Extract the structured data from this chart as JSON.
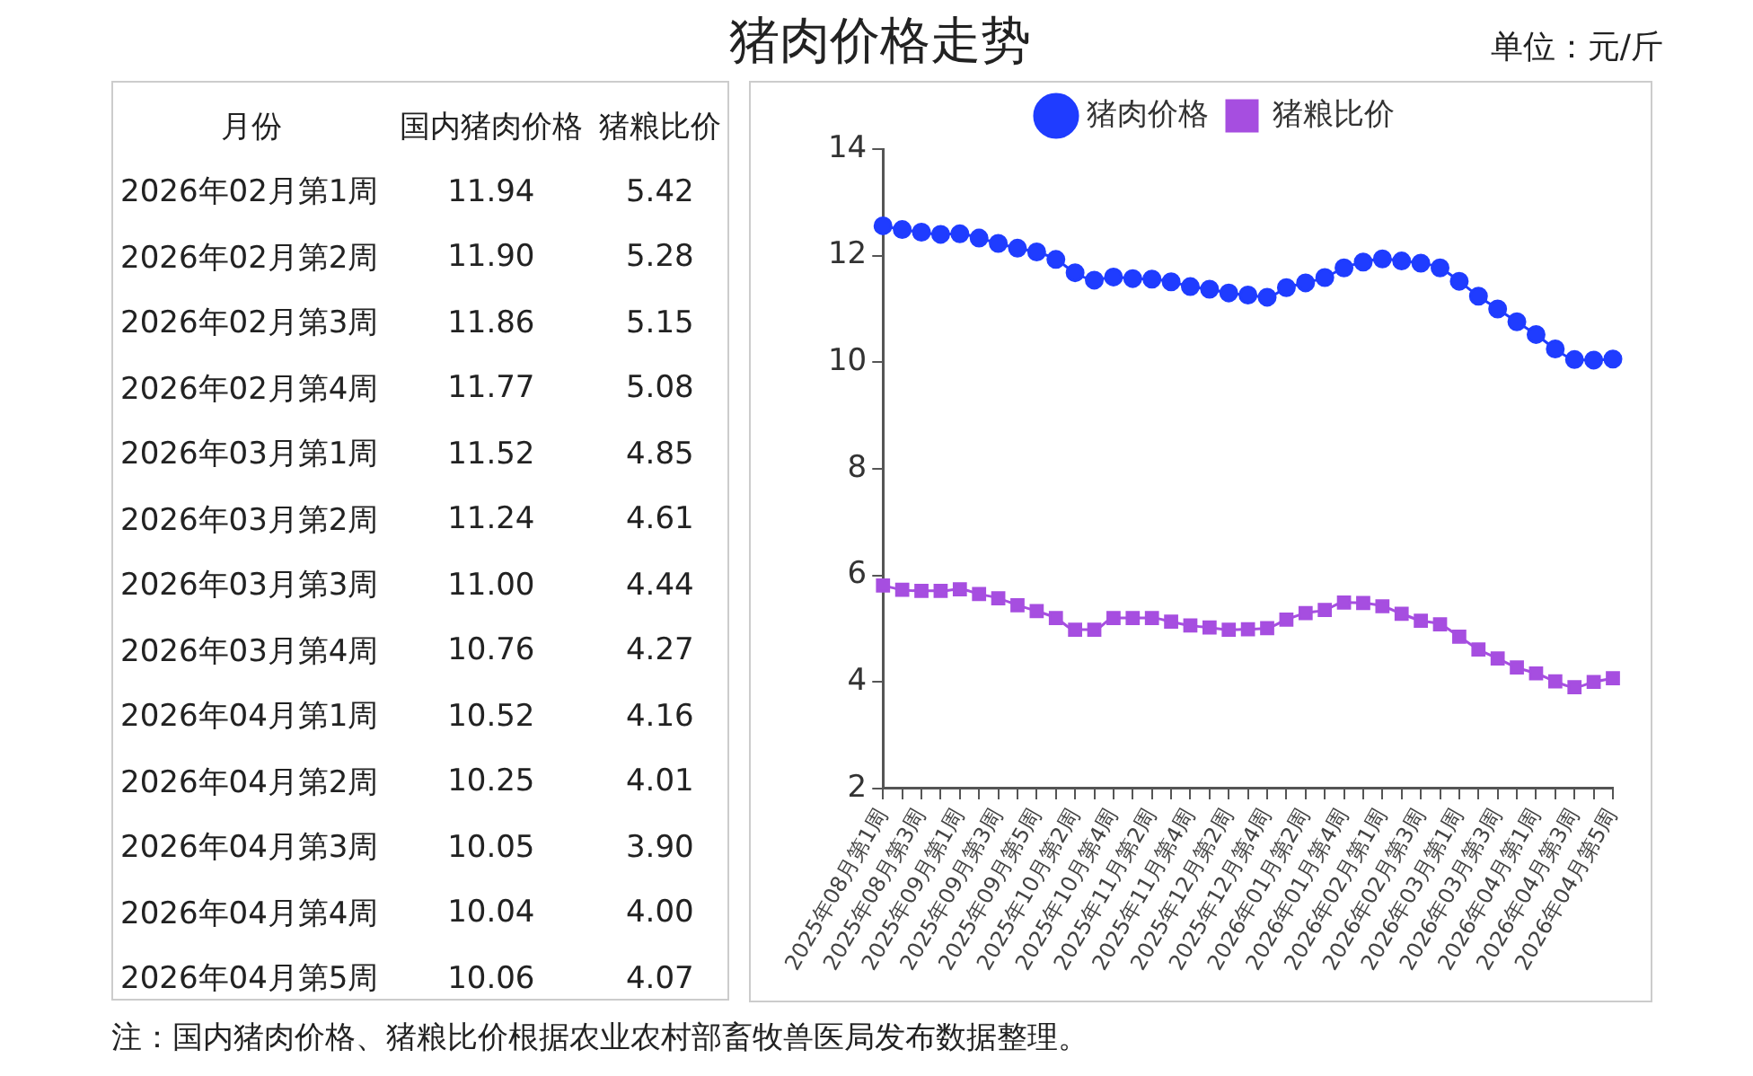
{
  "chart_data": [
    {
      "type": "other",
      "xlabel": "月份",
      "categories": [
        "2026年02月第1周",
        "2026年02月第2周",
        "2026年02月第3周",
        "2026年02月第4周",
        "2026年03月第1周",
        "2026年03月第2周",
        "2026年03月第3周",
        "2026年03月第4周",
        "2026年04月第1周",
        "2026年04月第2周",
        "2026年04月第3周",
        "2026年04月第4周",
        "2026年04月第5周"
      ],
      "series": [
        {
          "name": "国内猪肉价格",
          "values": [
            11.94,
            11.9,
            11.86,
            11.77,
            11.52,
            11.24,
            11.0,
            10.76,
            10.52,
            10.25,
            10.05,
            10.04,
            10.06
          ],
          "value_labels": [
            "11.94",
            "11.90",
            "11.86",
            "11.77",
            "11.52",
            "11.24",
            "11.00",
            "10.76",
            "10.52",
            "10.25",
            "10.05",
            "10.04",
            "10.06"
          ]
        },
        {
          "name": "猪粮比价",
          "values": [
            5.42,
            5.28,
            5.15,
            5.08,
            4.85,
            4.61,
            4.44,
            4.27,
            4.16,
            4.01,
            3.9,
            4.0,
            4.07
          ],
          "value_labels": [
            "5.42",
            "5.28",
            "5.15",
            "5.08",
            "4.85",
            "4.61",
            "4.44",
            "4.27",
            "4.16",
            "4.01",
            "3.90",
            "4.00",
            "4.07"
          ]
        }
      ]
    },
    {
      "type": "line",
      "title": "猪肉价格走势",
      "ylabel": "单位：元/斤",
      "categories": [
        "2025年08月第1周",
        null,
        "2025年08月第3周",
        null,
        "2025年09月第1周",
        null,
        "2025年09月第3周",
        null,
        "2025年09月第5周",
        null,
        "2025年10月第2周",
        null,
        "2025年10月第4周",
        null,
        "2025年11月第2周",
        null,
        "2025年11月第4周",
        null,
        "2025年12月第2周",
        null,
        "2025年12月第4周",
        null,
        "2026年01月第2周",
        null,
        "2026年01月第4周",
        null,
        "2026年02月第1周",
        null,
        "2026年02月第3周",
        null,
        "2026年03月第1周",
        null,
        "2026年03月第3周",
        null,
        "2026年04月第1周",
        null,
        "2026年04月第3周",
        null,
        "2026年04月第5周"
      ],
      "series": [
        {
          "name": "猪肉价格",
          "color": "#1f3cff",
          "marker": "circle",
          "values": [
            12.56,
            12.49,
            12.44,
            12.4,
            12.41,
            12.33,
            12.23,
            12.14,
            12.07,
            11.93,
            11.68,
            11.54,
            11.6,
            11.57,
            11.56,
            11.51,
            11.42,
            11.37,
            11.3,
            11.26,
            11.22,
            11.4,
            11.49,
            11.59,
            11.77,
            11.88,
            11.94,
            11.9,
            11.86,
            11.77,
            11.52,
            11.24,
            11.0,
            10.76,
            10.52,
            10.25,
            10.05,
            10.04,
            10.06
          ]
        },
        {
          "name": "猪粮比价",
          "color": "#a64ee0",
          "marker": "square",
          "values": [
            5.81,
            5.73,
            5.71,
            5.71,
            5.74,
            5.65,
            5.57,
            5.44,
            5.33,
            5.2,
            4.98,
            4.98,
            5.2,
            5.2,
            5.2,
            5.13,
            5.06,
            5.02,
            4.98,
            4.99,
            5.01,
            5.17,
            5.29,
            5.35,
            5.49,
            5.48,
            5.42,
            5.28,
            5.15,
            5.08,
            4.85,
            4.61,
            4.44,
            4.27,
            4.16,
            4.01,
            3.9,
            4.0,
            4.07
          ]
        }
      ],
      "ylim": [
        2,
        14
      ],
      "yticks": [
        2,
        4,
        6,
        8,
        10,
        12,
        14
      ],
      "grid": false,
      "legend": "top",
      "annotations": [
        "注：国内猪肉价格、猪粮比价根据农业农村部畜牧兽医局发布数据整理。"
      ]
    }
  ]
}
